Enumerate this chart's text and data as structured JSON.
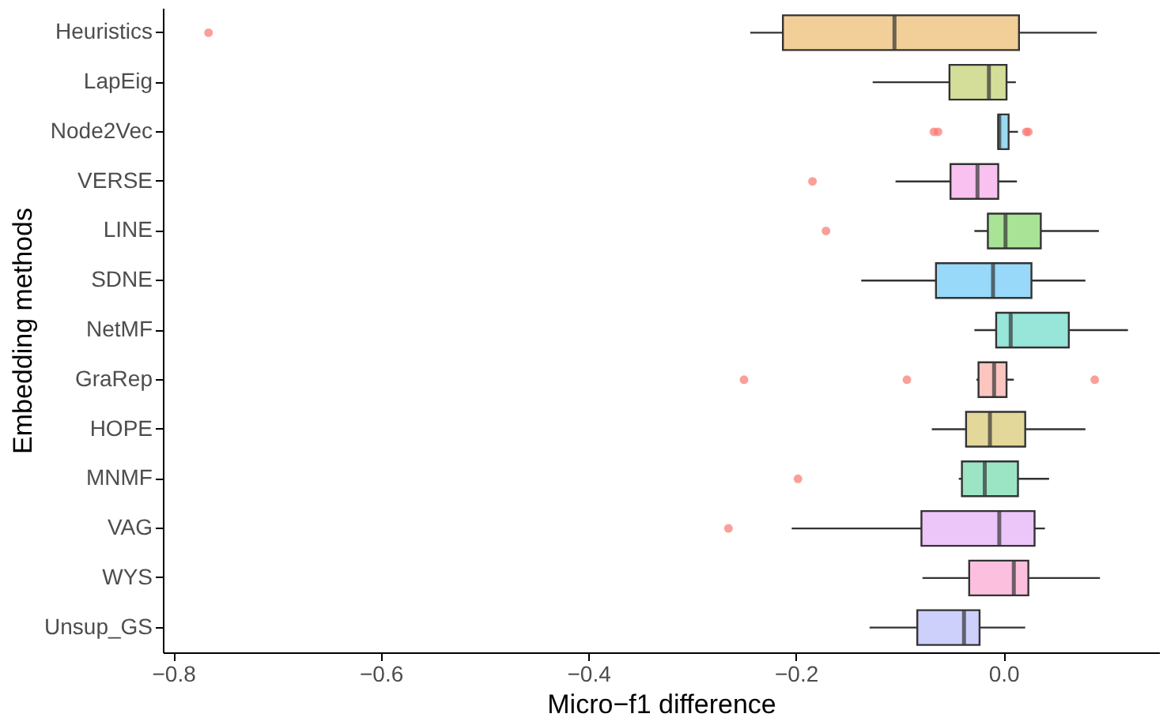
{
  "chart_data": {
    "type": "box",
    "orientation": "horizontal",
    "xlabel": "Micro−f1 difference",
    "ylabel": "Embedding methods",
    "categories": [
      "Heuristics",
      "LapEig",
      "Node2Vec",
      "VERSE",
      "LINE",
      "SDNE",
      "NetMF",
      "GraRep",
      "HOPE",
      "MNMF",
      "VAG",
      "WYS",
      "Unsup_GS"
    ],
    "colors": [
      "#f2cf98",
      "#d4de99",
      "#9ad9f0",
      "#f9c1ef",
      "#a8e396",
      "#98d9f9",
      "#98e5d9",
      "#fcc5c0",
      "#e3d79a",
      "#9be4c4",
      "#ecc6f8",
      "#fcc0de",
      "#cdd0fb"
    ],
    "boxes": [
      {
        "low": -0.244,
        "q1": -0.2125,
        "median": -0.105,
        "q3": 0.015,
        "high": 0.09,
        "outliers": [
          -0.766
        ]
      },
      {
        "low": -0.126,
        "q1": -0.052,
        "median": -0.014,
        "q3": 0.003,
        "high": 0.012
      },
      {
        "low": -0.005,
        "q1": -0.005,
        "median": -0.004,
        "q3": 0.005,
        "high": 0.014,
        "outliers": [
          -0.067,
          -0.063,
          0.022,
          0.024
        ]
      },
      {
        "low": -0.104,
        "q1": -0.051,
        "median": -0.025,
        "q3": -0.005,
        "high": 0.013,
        "outliers": [
          -0.184
        ]
      },
      {
        "low": -0.028,
        "q1": -0.015,
        "median": 0.002,
        "q3": 0.036,
        "high": 0.092,
        "outliers": [
          -0.171
        ]
      },
      {
        "low": -0.137,
        "q1": -0.065,
        "median": -0.01,
        "q3": 0.027,
        "high": 0.079
      },
      {
        "low": -0.028,
        "q1": -0.007,
        "median": 0.007,
        "q3": 0.063,
        "high": 0.12
      },
      {
        "low": -0.026,
        "q1": -0.024,
        "median": -0.009,
        "q3": 0.003,
        "high": 0.01,
        "outliers": [
          -0.25,
          -0.093,
          0.088
        ]
      },
      {
        "low": -0.069,
        "q1": -0.036,
        "median": -0.013,
        "q3": 0.021,
        "high": 0.079
      },
      {
        "low": -0.043,
        "q1": -0.04,
        "median": -0.018,
        "q3": 0.014,
        "high": 0.044,
        "outliers": [
          -0.198
        ]
      },
      {
        "low": -0.204,
        "q1": -0.079,
        "median": -0.004,
        "q3": 0.03,
        "high": 0.04,
        "outliers": [
          -0.265
        ]
      },
      {
        "low": -0.078,
        "q1": -0.033,
        "median": 0.01,
        "q3": 0.024,
        "high": 0.093
      },
      {
        "low": -0.129,
        "q1": -0.083,
        "median": -0.038,
        "q3": -0.023,
        "high": 0.021
      }
    ],
    "xlim": [
      -0.81,
      0.15
    ],
    "xticks": [
      {
        "value": -0.8,
        "label": "−0.8"
      },
      {
        "value": -0.6,
        "label": "−0.6"
      },
      {
        "value": -0.4,
        "label": "−0.4"
      },
      {
        "value": -0.2,
        "label": "−0.2"
      },
      {
        "value": 0,
        "label": "0.0"
      }
    ],
    "grid": false,
    "legend": false
  }
}
